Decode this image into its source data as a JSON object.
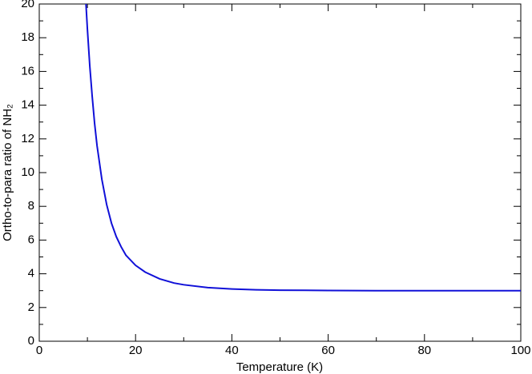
{
  "chart_data": {
    "type": "line",
    "xlabel": "Temperature (K)",
    "ylabel": "Ortho-to-para ratio of NH₂",
    "series": [
      {
        "color": "#1010d8",
        "x": [
          9.7,
          10,
          10.5,
          11,
          11.5,
          12,
          13,
          14,
          15,
          16,
          17,
          18,
          20,
          22,
          25,
          28,
          30,
          35,
          40,
          45,
          50,
          60,
          70,
          80,
          90,
          100
        ],
        "values": [
          20,
          18.5,
          16.3,
          14.5,
          12.9,
          11.6,
          9.6,
          8.1,
          7.0,
          6.2,
          5.6,
          5.1,
          4.5,
          4.1,
          3.7,
          3.45,
          3.35,
          3.18,
          3.1,
          3.05,
          3.03,
          3.01,
          3.0,
          3.0,
          3.0,
          3.0
        ]
      }
    ],
    "xlim": [
      0,
      100
    ],
    "xticks": [
      0,
      20,
      40,
      60,
      80,
      100
    ],
    "xminorticks": [
      10,
      30,
      50,
      70,
      90
    ],
    "ylim": [
      0,
      20
    ],
    "yticks": [
      0,
      2,
      4,
      6,
      8,
      10,
      12,
      14,
      16,
      18,
      20
    ],
    "yminorticks": [
      1,
      3,
      5,
      7,
      9,
      11,
      13,
      15,
      17,
      19
    ]
  }
}
